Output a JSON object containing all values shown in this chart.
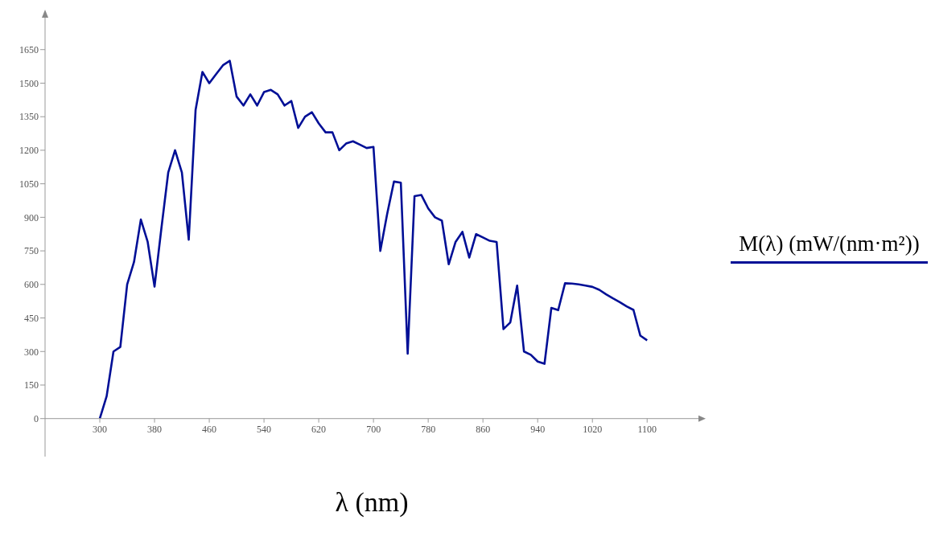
{
  "chart_data": {
    "type": "line",
    "xlabel": "λ (nm)",
    "legend": "right",
    "marker": "none",
    "line_style": "solid",
    "xlim": [
      220,
      1175
    ],
    "xticks": [
      300,
      380,
      460,
      540,
      620,
      700,
      780,
      860,
      940,
      1020,
      1100
    ],
    "ylim": [
      -170,
      1800
    ],
    "yticks": [
      0,
      150,
      300,
      450,
      600,
      750,
      900,
      1050,
      1200,
      1350,
      1500,
      1650
    ],
    "x": [
      300,
      310,
      320,
      330,
      340,
      350,
      360,
      370,
      380,
      390,
      400,
      410,
      420,
      430,
      440,
      450,
      460,
      470,
      480,
      490,
      500,
      510,
      520,
      530,
      540,
      550,
      560,
      570,
      580,
      590,
      600,
      610,
      620,
      630,
      640,
      650,
      660,
      670,
      680,
      690,
      700,
      710,
      720,
      730,
      740,
      750,
      760,
      770,
      780,
      790,
      800,
      810,
      820,
      830,
      840,
      850,
      860,
      870,
      880,
      890,
      900,
      910,
      920,
      930,
      940,
      950,
      960,
      970,
      980,
      990,
      1000,
      1010,
      1020,
      1030,
      1040,
      1050,
      1060,
      1070,
      1080,
      1090,
      1100
    ],
    "series": [
      {
        "name": "M(λ) (mW/(nm·m²))",
        "color": "#000f96",
        "values": [
          0,
          100,
          300,
          320,
          600,
          700,
          890,
          790,
          590,
          850,
          1100,
          1200,
          1100,
          800,
          1380,
          1550,
          1500,
          1540,
          1580,
          1600,
          1440,
          1400,
          1450,
          1400,
          1460,
          1470,
          1450,
          1400,
          1420,
          1300,
          1350,
          1370,
          1320,
          1280,
          1280,
          1200,
          1230,
          1240,
          1225,
          1210,
          1215,
          750,
          915,
          1060,
          1055,
          290,
          995,
          1000,
          940,
          900,
          885,
          690,
          790,
          835,
          720,
          825,
          810,
          795,
          790,
          400,
          430,
          595,
          300,
          285,
          255,
          245,
          495,
          485,
          605,
          604,
          600,
          595,
          589,
          576,
          556,
          538,
          521,
          502,
          486,
          371,
          350
        ]
      }
    ]
  }
}
